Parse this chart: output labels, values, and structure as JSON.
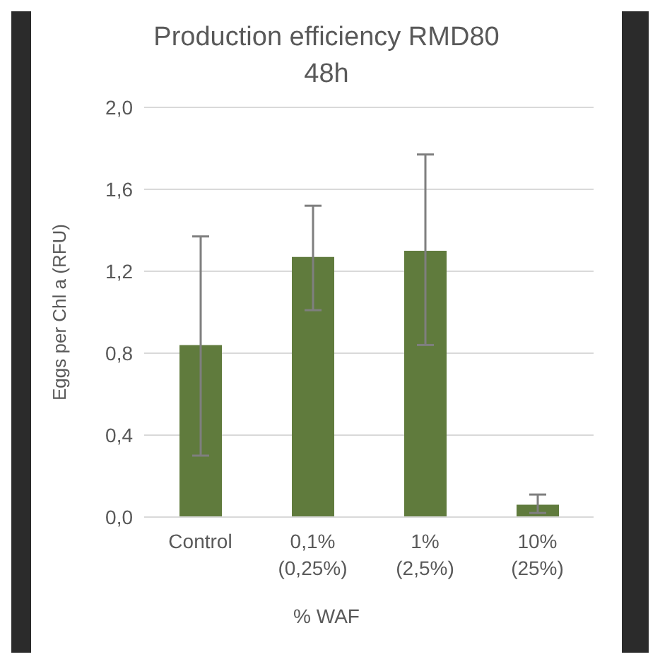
{
  "chart_data": {
    "type": "bar",
    "title": "Production efficiency RMD80\n48h",
    "xlabel": "% WAF",
    "ylabel": "Eggs per Chl a (RFU)",
    "categories": [
      "Control",
      "0,1%\n(0,25%)",
      "1%\n(2,5%)",
      "10%\n(25%)"
    ],
    "values": [
      0.84,
      1.27,
      1.3,
      0.06
    ],
    "color": "#607b3d",
    "errors": [
      [
        0.3,
        1.37
      ],
      [
        1.01,
        1.52
      ],
      [
        0.84,
        1.77
      ],
      [
        0.02,
        0.11
      ]
    ],
    "ylim": [
      0,
      2
    ],
    "yticks": [
      {
        "value": 0,
        "label": "0,0"
      },
      {
        "value": 0.4,
        "label": "0,4"
      },
      {
        "value": 0.8,
        "label": "0,8"
      },
      {
        "value": 1.2,
        "label": "1,2"
      },
      {
        "value": 1.6,
        "label": "1,6"
      },
      {
        "value": 2,
        "label": "2,0"
      }
    ],
    "grid": "y"
  }
}
